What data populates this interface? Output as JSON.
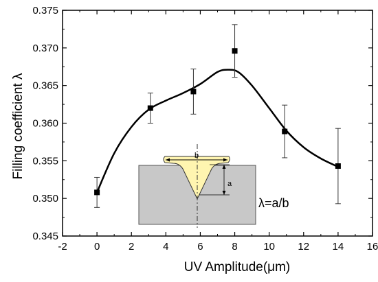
{
  "chart_data": {
    "type": "scatter",
    "title": "",
    "xlabel": "UV Amplitude(μm)",
    "ylabel": "Filling coefficient λ",
    "xlim": [
      -2,
      16
    ],
    "ylim": [
      0.345,
      0.375
    ],
    "x_ticks": [
      "-2",
      "0",
      "2",
      "4",
      "6",
      "8",
      "10",
      "12",
      "14",
      "16"
    ],
    "y_ticks": [
      "0.345",
      "0.350",
      "0.355",
      "0.360",
      "0.365",
      "0.370",
      "0.375"
    ],
    "series": [
      {
        "points": [
          {
            "x": 0,
            "y": 0.3508,
            "err": 0.002
          },
          {
            "x": 3.1,
            "y": 0.362,
            "err": 0.002
          },
          {
            "x": 5.6,
            "y": 0.3642,
            "err": 0.003
          },
          {
            "x": 8.0,
            "y": 0.3696,
            "err": 0.0035
          },
          {
            "x": 10.9,
            "y": 0.3589,
            "err": 0.0035
          },
          {
            "x": 14.0,
            "y": 0.3543,
            "err": 0.005
          }
        ]
      }
    ],
    "fit_curve": [
      {
        "x": 0,
        "y": 0.3508
      },
      {
        "x": 1,
        "y": 0.356
      },
      {
        "x": 2,
        "y": 0.3595
      },
      {
        "x": 3,
        "y": 0.3618
      },
      {
        "x": 4,
        "y": 0.363
      },
      {
        "x": 5,
        "y": 0.364
      },
      {
        "x": 6,
        "y": 0.3652
      },
      {
        "x": 7,
        "y": 0.3668
      },
      {
        "x": 7.6,
        "y": 0.3671
      },
      {
        "x": 8.2,
        "y": 0.3668
      },
      {
        "x": 9,
        "y": 0.365
      },
      {
        "x": 10,
        "y": 0.362
      },
      {
        "x": 11,
        "y": 0.359
      },
      {
        "x": 12,
        "y": 0.3568
      },
      {
        "x": 13,
        "y": 0.3553
      },
      {
        "x": 14,
        "y": 0.3542
      }
    ],
    "inset": {
      "label_b": "b",
      "label_a": "a",
      "formula": "λ=a/b"
    }
  },
  "colors": {
    "line": "#000000",
    "substrate": "#c8c8c8",
    "polymer": "#fff5b0"
  }
}
